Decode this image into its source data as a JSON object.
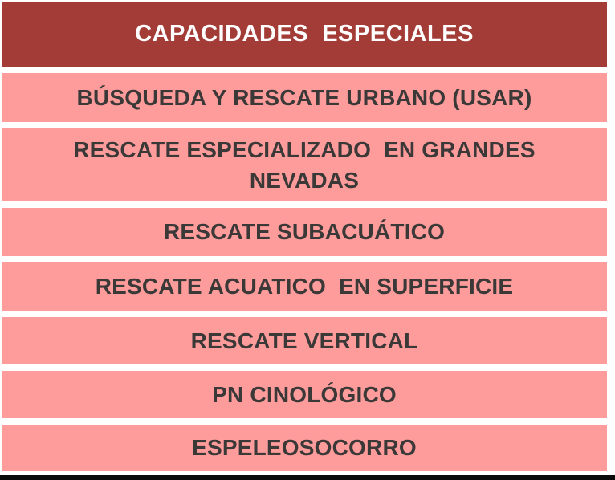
{
  "table": {
    "header": {
      "title": "CAPACIDADES  ESPECIALES"
    },
    "rows": [
      {
        "lines": [
          "BÚSQUEDA Y RESCATE URBANO (USAR)"
        ]
      },
      {
        "lines": [
          "RESCATE ESPECIALIZADO  EN GRANDES",
          "NEVADAS"
        ]
      },
      {
        "lines": [
          "RESCATE SUBACUÁTICO"
        ]
      },
      {
        "lines": [
          "RESCATE ACUATICO  EN SUPERFICIE"
        ]
      },
      {
        "lines": [
          "RESCATE VERTICAL"
        ]
      },
      {
        "lines": [
          "PN CINOLÓGICO"
        ]
      },
      {
        "lines": [
          "ESPELEOSOCORRO"
        ]
      }
    ]
  },
  "colors": {
    "header_bg": "#a33b36",
    "row_bg": "#fd9c9b",
    "row_text": "#3b3838",
    "header_text": "#ffffff",
    "page_bg": "#ffffff",
    "bottom_bar": "#0a0a0a"
  }
}
